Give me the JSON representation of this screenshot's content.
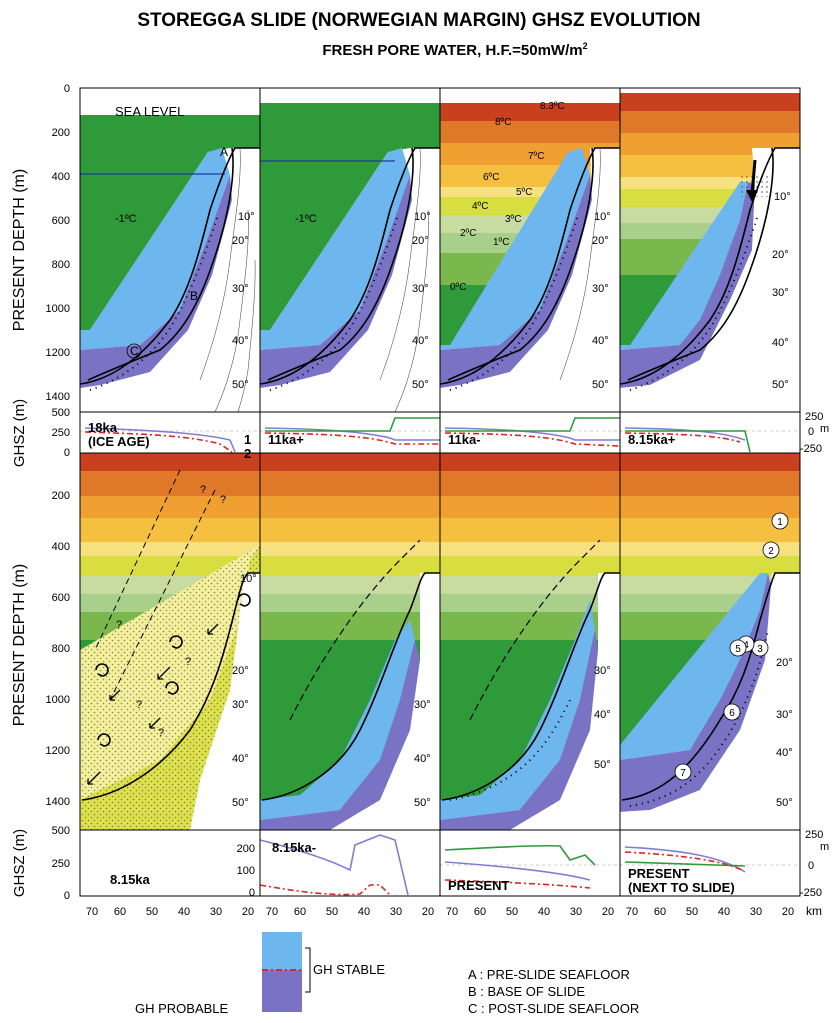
{
  "title": "STOREGGA SLIDE (NORWEGIAN MARGIN) GHSZ EVOLUTION",
  "subtitle": "FRESH PORE WATER, H.F.=50mW/m",
  "subtitle_sup": "2",
  "y_axis_depth_label": "PRESENT DEPTH (m)",
  "y_axis_ghsz_label": "GHSZ (m)",
  "x_axis_unit": "km",
  "right_axis_unit": "m",
  "depth_ticks": [
    "0",
    "200",
    "400",
    "600",
    "800",
    "1000",
    "1200",
    "1400"
  ],
  "depth_ticks_bottom": [
    "200",
    "400",
    "600",
    "800",
    "1000",
    "1200",
    "1400"
  ],
  "ghsz_ticks_left": [
    "500",
    "250",
    "0"
  ],
  "ghsz_ticks_right": [
    "250",
    "0",
    "-250"
  ],
  "ghsz_inner_ticks": [
    "200",
    "100",
    "0"
  ],
  "x_ticks": [
    "70",
    "60",
    "50",
    "40",
    "30",
    "20"
  ],
  "sea_level_label": "SEA LEVEL",
  "temps_seafloor": [
    "10°",
    "20°",
    "30°",
    "40°",
    "50°"
  ],
  "temps_water_cold": "-1ºC",
  "temps_water_present": [
    "8.3ºC",
    "8ºC",
    "7ºC",
    "6ºC",
    "5ºC",
    "4ºC",
    "3ºC",
    "2ºC",
    "1ºC",
    "0ºC"
  ],
  "point_labels": [
    "A",
    "B",
    "C"
  ],
  "circled_numbers": [
    "1",
    "2",
    "3",
    "4",
    "5",
    "6",
    "7"
  ],
  "question_mark": "?",
  "curve_labels": [
    "1",
    "2"
  ],
  "stage_labels": {
    "s1": [
      "18ka",
      "(ICE AGE)"
    ],
    "s2": "11ka+",
    "s3": "11ka-",
    "s4": "8.15ka+",
    "s5": "8.15ka",
    "s6": "8.15ka-",
    "s7": "PRESENT",
    "s8": [
      "PRESENT",
      "(NEXT TO SLIDE)"
    ]
  },
  "legend": {
    "gh_probable": "GH PROBABLE",
    "gh_stable": "GH STABLE",
    "a": "A : PRE-SLIDE SEAFLOOR",
    "b": "B : BASE OF SLIDE",
    "c": "C : POST-SLIDE SEAFLOOR"
  },
  "colors": {
    "ice_green": "#2e9a3a",
    "gh_light_blue": "#6eb6ee",
    "gh_purple": "#7a72c4",
    "curve_purple": "#7f7fd0",
    "curve_red": "#e0261f",
    "curve_green": "#2e9a3a",
    "slide_yellow": "#f4ef9a"
  }
}
